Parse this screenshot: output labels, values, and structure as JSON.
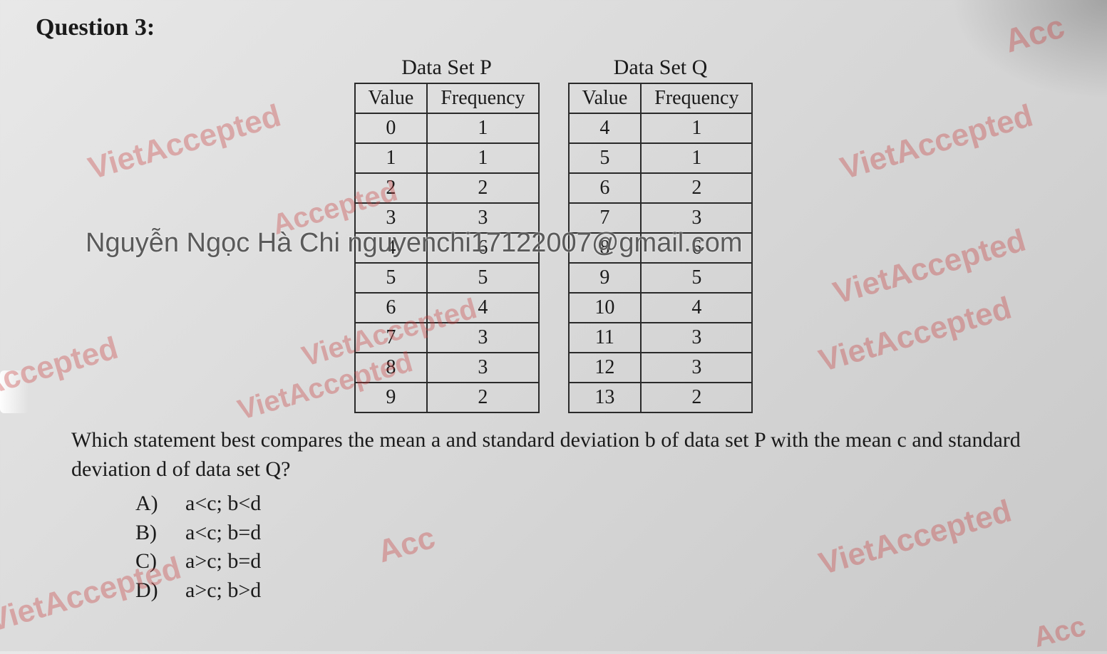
{
  "question_label": "Question 3:",
  "tableP": {
    "caption": "Data Set P",
    "col1": "Value",
    "col2": "Frequency",
    "rows": [
      [
        "0",
        "1"
      ],
      [
        "1",
        "1"
      ],
      [
        "2",
        "2"
      ],
      [
        "3",
        "3"
      ],
      [
        "4",
        "6"
      ],
      [
        "5",
        "5"
      ],
      [
        "6",
        "4"
      ],
      [
        "7",
        "3"
      ],
      [
        "8",
        "3"
      ],
      [
        "9",
        "2"
      ]
    ]
  },
  "tableQ": {
    "caption": "Data Set Q",
    "col1": "Value",
    "col2": "Frequency",
    "rows": [
      [
        "4",
        "1"
      ],
      [
        "5",
        "1"
      ],
      [
        "6",
        "2"
      ],
      [
        "7",
        "3"
      ],
      [
        "8",
        "6"
      ],
      [
        "9",
        "5"
      ],
      [
        "10",
        "4"
      ],
      [
        "11",
        "3"
      ],
      [
        "12",
        "3"
      ],
      [
        "13",
        "2"
      ]
    ]
  },
  "body_text": "Which statement best compares the mean a and standard deviation b of data set P with the mean c and standard deviation d of data set Q?",
  "options": {
    "A": {
      "letter": "A)",
      "text": "a<c; b<d"
    },
    "B": {
      "letter": "B)",
      "text": "a<c; b=d"
    },
    "C": {
      "letter": "C)",
      "text": "a>c; b=d"
    },
    "D": {
      "letter": "D)",
      "text": "a>c; b>d"
    }
  },
  "watermarks": {
    "brand": "VietAccepted",
    "short": "Accepted",
    "frag": "Acc",
    "owner": "Nguyễn Ngọc Hà Chi nguyenchi17122007@gmail.com"
  },
  "colors": {
    "watermark_color": "#c85050",
    "text_color": "#1a1a1a",
    "border_color": "#2a2a2a",
    "bg_light": "#e8e8e8",
    "bg_dark": "#c8c8c8"
  },
  "typography": {
    "serif_family": "Georgia, Times New Roman, serif",
    "sans_family": "Arial, Helvetica, sans-serif",
    "title_size_pt": 26,
    "body_size_pt": 23,
    "table_size_pt": 21,
    "watermark_size_pt": 33
  }
}
